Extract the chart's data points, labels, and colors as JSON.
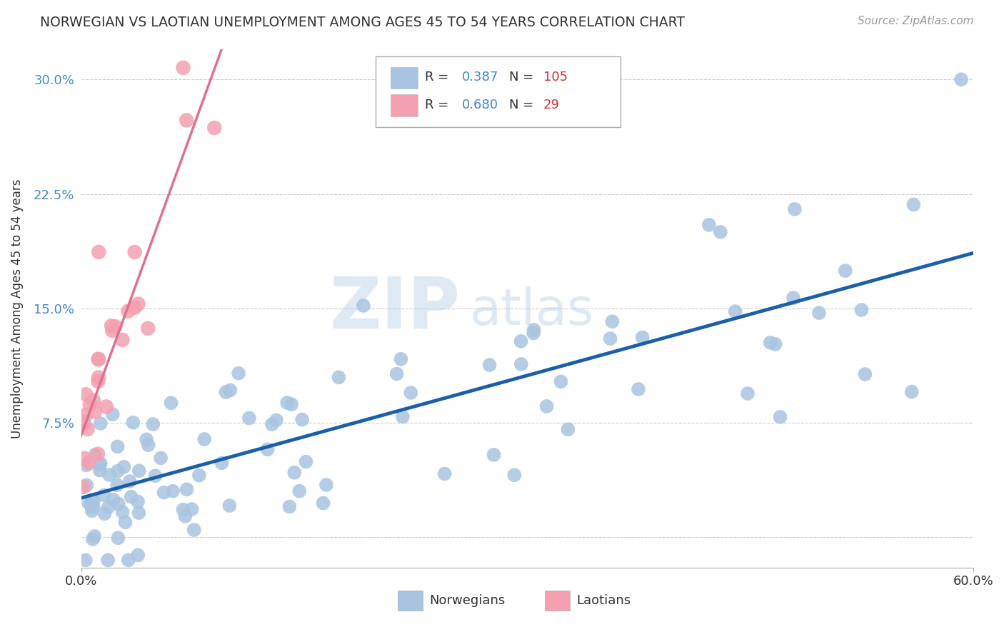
{
  "title": "NORWEGIAN VS LAOTIAN UNEMPLOYMENT AMONG AGES 45 TO 54 YEARS CORRELATION CHART",
  "source": "Source: ZipAtlas.com",
  "ylabel": "Unemployment Among Ages 45 to 54 years",
  "xlim": [
    0.0,
    0.6
  ],
  "ylim": [
    -0.02,
    0.32
  ],
  "norwegian_R": 0.387,
  "norwegian_N": 105,
  "laotian_R": 0.68,
  "laotian_N": 29,
  "norwegian_color": "#a8c4e0",
  "laotian_color": "#f4a0b0",
  "norwegian_line_color": "#1a5fa8",
  "laotian_line_color": "#e07090",
  "watermark_zip": "ZIP",
  "watermark_atlas": "atlas",
  "background_color": "#ffffff",
  "grid_color": "#cccccc",
  "title_color": "#333333",
  "legend_label1": "Norwegians",
  "legend_label2": "Laotians",
  "stat_color_r": "#4488cc",
  "stat_color_n": "#cc3333"
}
